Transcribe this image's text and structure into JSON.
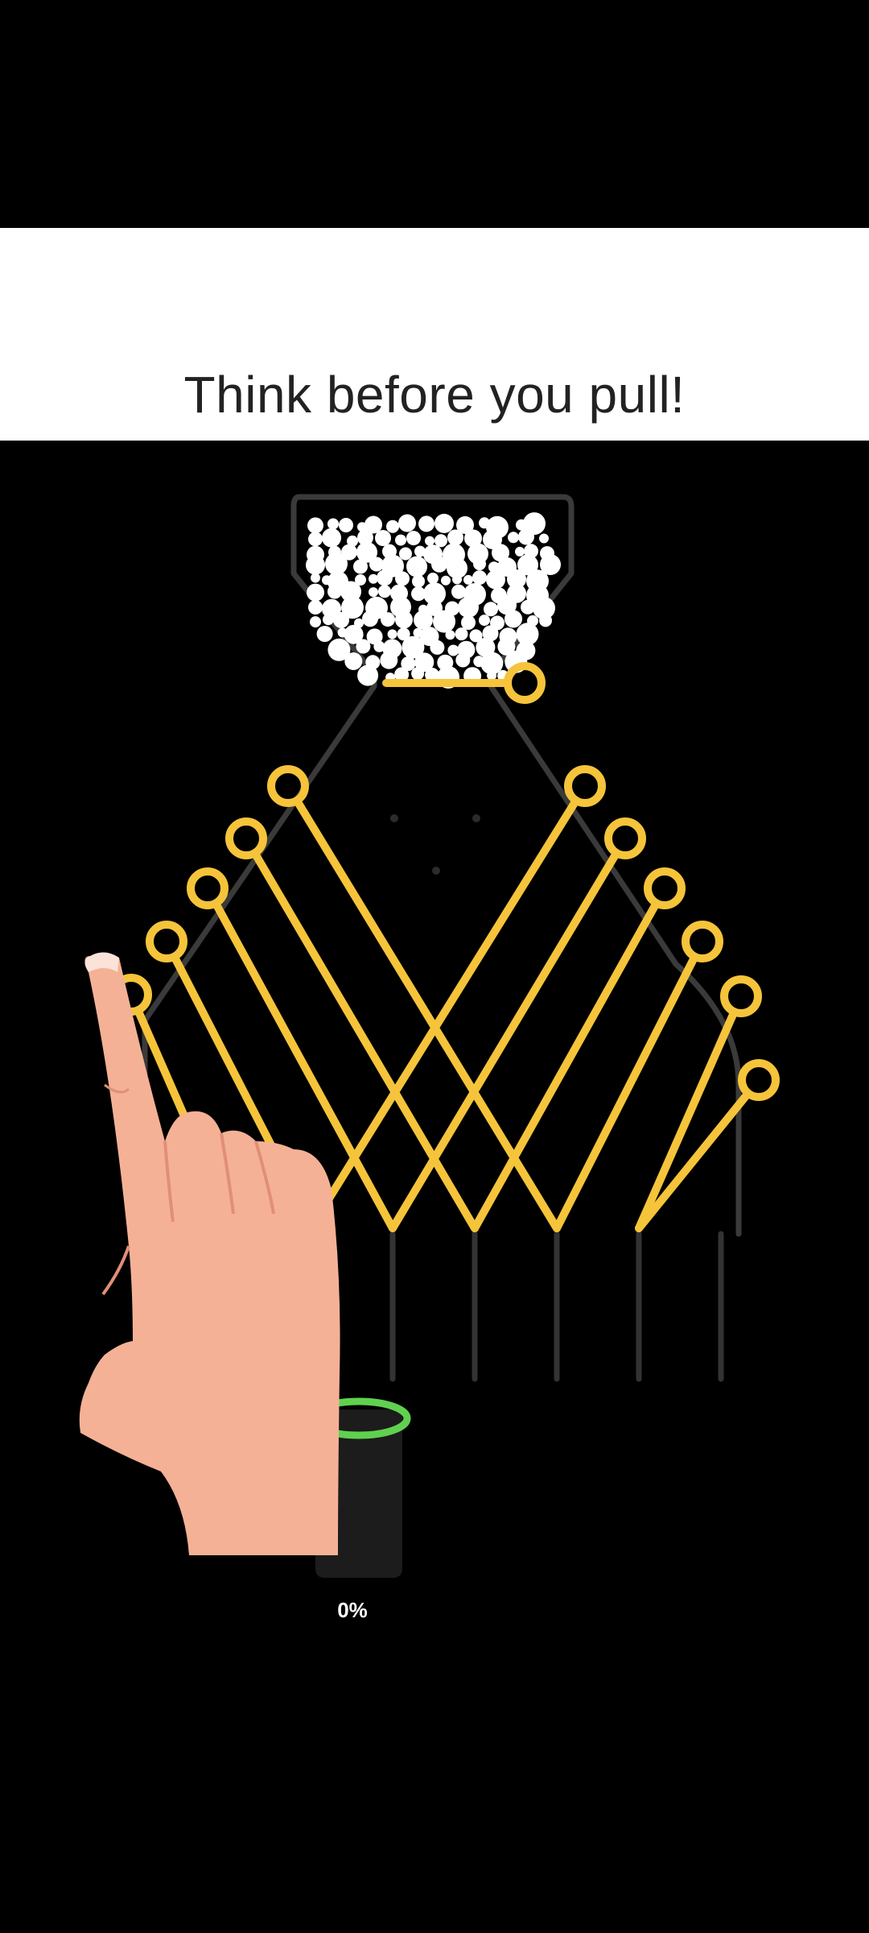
{
  "banner": {
    "title": "Think before you pull!"
  },
  "game": {
    "progress": "0%",
    "progress_value": 0,
    "pins_total": 11,
    "colors": {
      "pin": "#f5c43a",
      "track": "#3a3a3a",
      "ball": "#ffffff",
      "cup_rim": "#5fd14f",
      "cup_body": "#1c1c1c",
      "hand": "#f5b196"
    },
    "icons": {
      "tutorial_hand": "pointing-hand-icon"
    }
  }
}
